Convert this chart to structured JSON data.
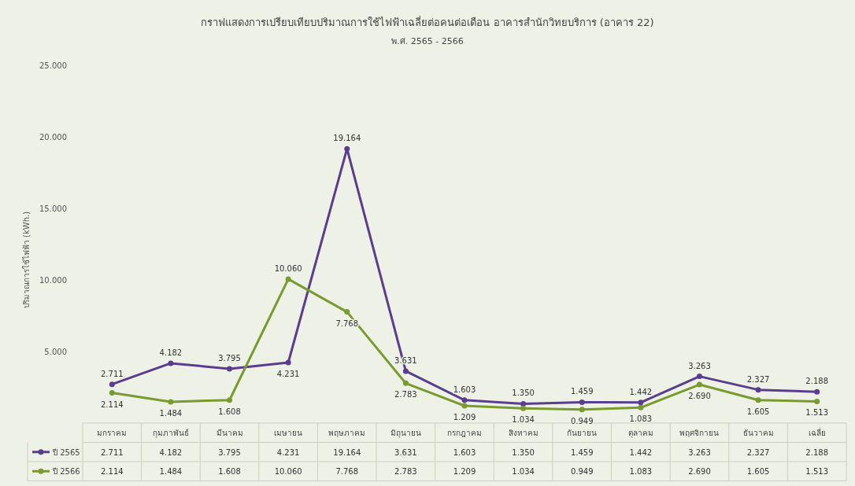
{
  "chart_data": {
    "type": "line",
    "title": "กราฟแสดงการเปรียบเทียบปริมาณการใช้ไฟฟ้าเฉลี่ยต่อคนต่อเดือน อาคารสำนักวิทยบริการ (อาคาร 22)",
    "subtitle": "พ.ศ. 2565 - 2566",
    "ylabel": "ปริมาณการใช้ไฟฟ้า (kWh.)",
    "categories": [
      "มกราคม",
      "กุมภาพันธ์",
      "มีนาคม",
      "เมษายน",
      "พฤษภาคม",
      "มิถุนายน",
      "กรกฎาคม",
      "สิงหาคม",
      "กันยายน",
      "ตุลาคม",
      "พฤศจิกายน",
      "ธันวาคม",
      "เฉลี่ย"
    ],
    "series": [
      {
        "name": "ปี 2565",
        "color": "#5b3d8f",
        "values": [
          2.711,
          4.182,
          3.795,
          4.231,
          19.164,
          3.631,
          1.603,
          1.35,
          1.459,
          1.442,
          3.263,
          2.327,
          2.188
        ],
        "value_labels": [
          "2.711",
          "4.182",
          "3.795",
          "4.231",
          "19.164",
          "3.631",
          "1.603",
          "1.350",
          "1.459",
          "1.442",
          "3.263",
          "2.327",
          "2.188"
        ]
      },
      {
        "name": "ปี 2566",
        "color": "#789a2e",
        "values": [
          2.114,
          1.484,
          1.608,
          10.06,
          7.768,
          2.783,
          1.209,
          1.034,
          0.949,
          1.083,
          2.69,
          1.605,
          1.513
        ],
        "value_labels": [
          "2.114",
          "1.484",
          "1.608",
          "10.060",
          "7.768",
          "2.783",
          "1.209",
          "1.034",
          "0.949",
          "1.083",
          "2.690",
          "1.605",
          "1.513"
        ]
      }
    ],
    "ylim": [
      0,
      25
    ],
    "yticks": [
      {
        "value": 5,
        "label": "5.000"
      },
      {
        "value": 10,
        "label": "10.000"
      },
      {
        "value": 15,
        "label": "15.000"
      },
      {
        "value": 20,
        "label": "20.000"
      },
      {
        "value": 25,
        "label": "25.000"
      }
    ],
    "marker": "circle",
    "legend": "bottom",
    "grid": false
  }
}
